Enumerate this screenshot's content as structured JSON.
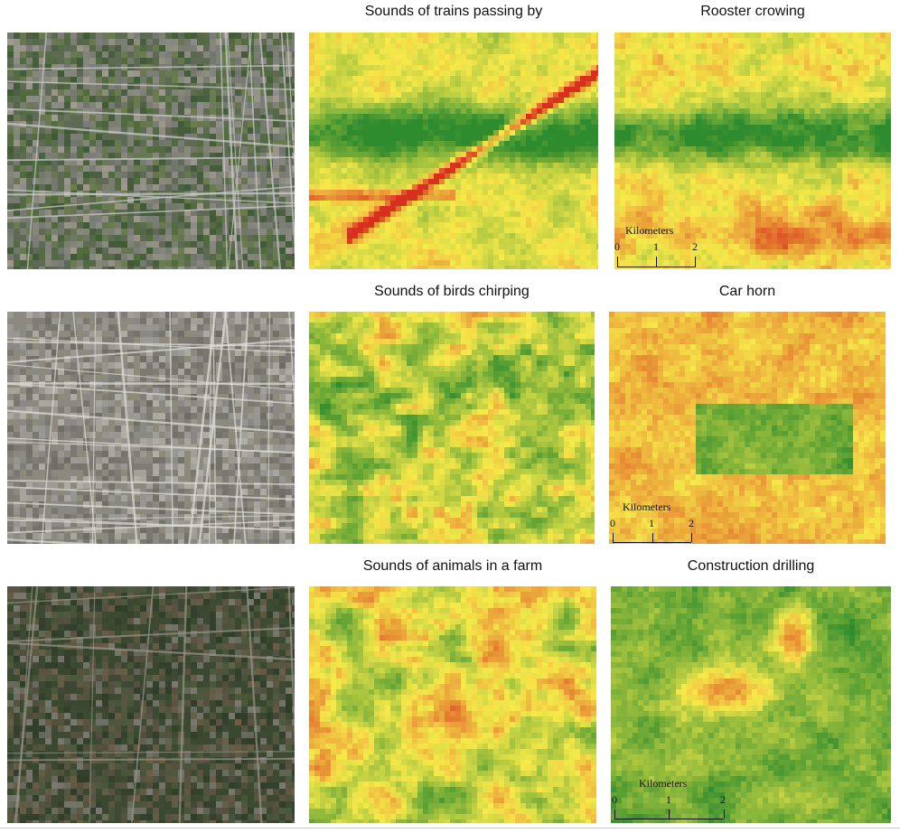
{
  "rows": [
    {
      "satellite": "satellite-farm-town",
      "maps": [
        {
          "title": "Sounds of trains passing by",
          "scale": null
        },
        {
          "title": "Rooster crowing",
          "scale": {
            "label": "Kilometers",
            "ticks": [
              "0",
              "1",
              "2"
            ]
          }
        }
      ]
    },
    {
      "satellite": "satellite-city-park",
      "maps": [
        {
          "title": "Sounds of birds chirping",
          "scale": null
        },
        {
          "title": "Car horn",
          "scale": {
            "label": "Kilometers",
            "ticks": [
              "0",
              "1",
              "2"
            ]
          }
        }
      ]
    },
    {
      "satellite": "satellite-rural-village",
      "maps": [
        {
          "title": "Sounds of animals in a farm",
          "scale": null
        },
        {
          "title": "Construction drilling",
          "scale": {
            "label": "Kilometers",
            "ticks": [
              "0",
              "1",
              "2"
            ]
          }
        }
      ]
    }
  ],
  "colors": {
    "low": "#d7301f",
    "mid": "#f6e94a",
    "high": "#2e8b2e"
  }
}
